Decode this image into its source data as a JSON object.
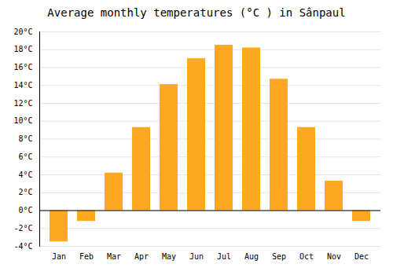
{
  "chart_data": {
    "type": "bar",
    "title": "Average monthly temperatures (°C ) in Sânpaul",
    "categories": [
      "Jan",
      "Feb",
      "Mar",
      "Apr",
      "May",
      "Jun",
      "Jul",
      "Aug",
      "Sep",
      "Oct",
      "Nov",
      "Dec"
    ],
    "values": [
      -3.5,
      -1.2,
      4.2,
      9.3,
      14.1,
      17.0,
      18.5,
      18.2,
      14.7,
      9.3,
      3.3,
      -1.2
    ],
    "color": "#FFA820",
    "ylim": [
      -4,
      20
    ],
    "yticks": [
      {
        "value": -4,
        "label": "-4°C"
      },
      {
        "value": -2,
        "label": "-2°C"
      },
      {
        "value": 0,
        "label": "0°C"
      },
      {
        "value": 2,
        "label": "2°C"
      },
      {
        "value": 4,
        "label": "4°C"
      },
      {
        "value": 6,
        "label": "6°C"
      },
      {
        "value": 8,
        "label": "8°C"
      },
      {
        "value": 10,
        "label": "10°C"
      },
      {
        "value": 12,
        "label": "12°C"
      },
      {
        "value": 14,
        "label": "14°C"
      },
      {
        "value": 16,
        "label": "16°C"
      },
      {
        "value": 18,
        "label": "18°C"
      },
      {
        "value": 20,
        "label": "20°C"
      }
    ],
    "grid": true
  }
}
